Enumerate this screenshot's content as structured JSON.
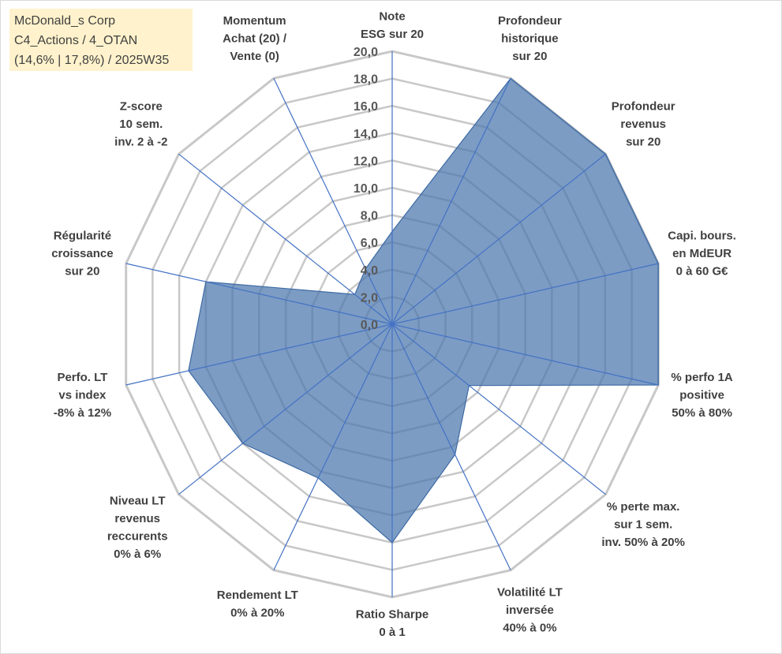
{
  "title_box": {
    "line1": "McDonald_s Corp",
    "line2": "C4_Actions / 4_OTAN",
    "line3": "(14,6% | 17,8%) / 2025W35"
  },
  "chart_data": {
    "type": "radar",
    "rlim": [
      0,
      20
    ],
    "tick_step": 2,
    "tick_labels": [
      "0,0",
      "2,0",
      "4,0",
      "6,0",
      "8,0",
      "10,0",
      "12,0",
      "14,0",
      "16,0",
      "18,0",
      "20,0"
    ],
    "grid": true,
    "legend": "none",
    "colors": {
      "fill": "#4a76ad",
      "fill_opacity": 0.72,
      "spoke": "#4472c4",
      "grid": "#c8c8c8"
    },
    "axes": [
      {
        "lines": [
          "Note",
          "ESG sur 20"
        ],
        "value": 6.8
      },
      {
        "lines": [
          "Profondeur",
          "historique",
          "sur 20"
        ],
        "value": 20
      },
      {
        "lines": [
          "Profondeur",
          "revenus",
          "sur 20"
        ],
        "value": 20
      },
      {
        "lines": [
          "Capi. bours.",
          "en MdEUR",
          "0 à 60 G€"
        ],
        "value": 20
      },
      {
        "lines": [
          "% perfo 1A",
          "positive",
          "50% à 80%"
        ],
        "value": 20
      },
      {
        "lines": [
          "% perte max.",
          "sur 1 sem.",
          "inv. 50% à 20%"
        ],
        "value": 7.2
      },
      {
        "lines": [
          "Volatilité LT",
          "inversée",
          "40% à 0%"
        ],
        "value": 10.6
      },
      {
        "lines": [
          "Ratio Sharpe",
          "0 à 1"
        ],
        "value": 16
      },
      {
        "lines": [
          "Rendement LT",
          "0% à 20%"
        ],
        "value": 12.5
      },
      {
        "lines": [
          "Niveau LT",
          "revenus",
          "reccurents",
          "0% à 6%"
        ],
        "value": 14
      },
      {
        "lines": [
          "Perfo. LT",
          "vs index",
          "-8% à 12%"
        ],
        "value": 15.3
      },
      {
        "lines": [
          "Régularité",
          "croissance",
          "sur 20"
        ],
        "value": 14
      },
      {
        "lines": [
          "Z-score",
          "10 sem.",
          "inv. 2 à -2"
        ],
        "value": 3.5
      },
      {
        "lines": [
          "Momentum",
          "Achat (20) /",
          "Vente (0)"
        ],
        "value": 4.5
      }
    ]
  }
}
